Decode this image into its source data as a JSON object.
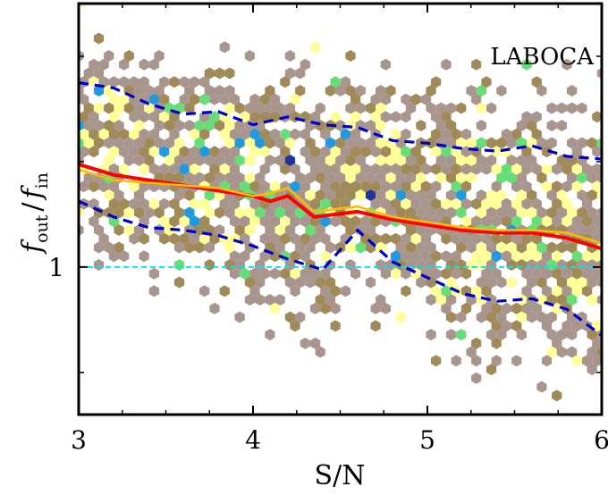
{
  "chart_data": {
    "type": "heatmap",
    "title": "",
    "annotation": "LABOCA",
    "xlabel": "S/N",
    "ylabel": "f_out / f_in",
    "ylabel_parts": {
      "f": "f",
      "out": "out",
      "slash": "/",
      "in": "in"
    },
    "xlim": [
      3,
      6
    ],
    "ylim": [
      0.72,
      1.5
    ],
    "x_ticks": [
      3,
      4,
      5,
      6
    ],
    "x_tick_labels": [
      "3",
      "4",
      "5",
      "6"
    ],
    "y_tick_labels": [
      {
        "value": 1.0,
        "label": "1"
      }
    ],
    "y_minor_ticks": [
      0.8,
      1.2,
      1.4
    ],
    "grid": false,
    "hexbin_density_colors": [
      "#a8968e",
      "#a08a5a",
      "#ffff99",
      "#66dd77",
      "#2299dd",
      "#223399"
    ],
    "series": [
      {
        "name": "",
        "style": "solid",
        "color": "#ff0000",
        "x": [
          3.0,
          3.2,
          3.4,
          3.6,
          3.8,
          4.0,
          4.1,
          4.2,
          4.35,
          4.6,
          4.8,
          5.0,
          5.2,
          5.4,
          5.6,
          5.8,
          6.0
        ],
        "y": [
          1.195,
          1.175,
          1.165,
          1.155,
          1.145,
          1.135,
          1.125,
          1.135,
          1.095,
          1.105,
          1.09,
          1.08,
          1.07,
          1.065,
          1.065,
          1.055,
          1.035
        ]
      },
      {
        "name": "",
        "style": "solid",
        "color": "#ffbb00",
        "x": [
          3.0,
          3.2,
          3.4,
          3.6,
          3.8,
          4.0,
          4.1,
          4.2,
          4.35,
          4.6,
          4.8,
          5.0,
          5.2,
          5.4,
          5.6,
          5.8,
          6.0
        ],
        "y": [
          1.185,
          1.165,
          1.16,
          1.155,
          1.15,
          1.135,
          1.14,
          1.15,
          1.105,
          1.115,
          1.095,
          1.085,
          1.075,
          1.07,
          1.07,
          1.065,
          1.045
        ]
      },
      {
        "name": "",
        "style": "dashed",
        "color": "#0000cc",
        "x": [
          3.0,
          3.2,
          3.4,
          3.6,
          3.8,
          4.0,
          4.2,
          4.4,
          4.6,
          4.8,
          5.0,
          5.2,
          5.4,
          5.6,
          5.8,
          6.0
        ],
        "y": [
          1.35,
          1.34,
          1.31,
          1.29,
          1.295,
          1.27,
          1.285,
          1.27,
          1.265,
          1.24,
          1.235,
          1.225,
          1.22,
          1.23,
          1.21,
          1.205
        ]
      },
      {
        "name": "",
        "style": "dashed",
        "color": "#0000cc",
        "x": [
          3.0,
          3.2,
          3.4,
          3.6,
          3.8,
          4.0,
          4.2,
          4.4,
          4.6,
          4.8,
          5.0,
          5.2,
          5.4,
          5.6,
          5.8,
          6.0
        ],
        "y": [
          1.125,
          1.095,
          1.075,
          1.07,
          1.06,
          1.04,
          1.015,
          0.995,
          1.07,
          1.01,
          0.98,
          0.95,
          0.935,
          0.94,
          0.92,
          0.87
        ]
      },
      {
        "name": "",
        "style": "dashed",
        "color": "#00e5ee",
        "x": [
          3.0,
          6.0
        ],
        "y": [
          1.0,
          1.0
        ]
      }
    ]
  }
}
